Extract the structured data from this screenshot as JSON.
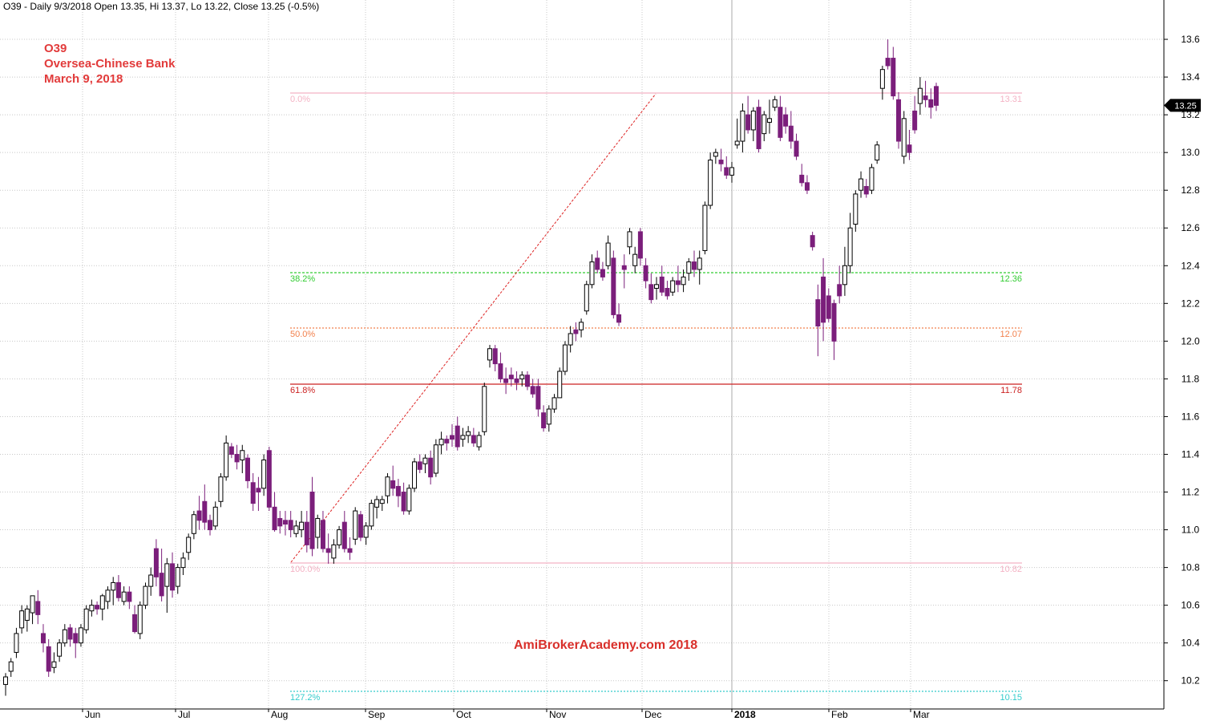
{
  "header": {
    "text": "O39 - Daily 9/3/2018 Open 13.35, Hi 13.37, Lo 13.22, Close 13.25 (-0.5%)"
  },
  "title": {
    "ticker": "O39",
    "name": "Oversea-Chinese Bank",
    "date": "March 9, 2018"
  },
  "watermark": "AmiBrokerAcademy.com  2018",
  "colors": {
    "bear": "#7b1e7b",
    "bull": "#ffffff",
    "wick": "#000000",
    "grid": "#c8c8c8",
    "fib_0": "#f4b2c4",
    "fib_382": "#33cc33",
    "fib_50": "#f2814d",
    "fib_618": "#cc2222",
    "fib_100": "#f4b2c4",
    "fib_1272": "#33cccc",
    "trend": "#dd2222"
  },
  "chart_data": {
    "type": "candlestick",
    "y_range": [
      10.05,
      13.8
    ],
    "y_ticks": [
      10.2,
      10.4,
      10.6,
      10.8,
      11.0,
      11.2,
      11.4,
      11.6,
      11.8,
      12.0,
      12.2,
      12.4,
      12.6,
      12.8,
      13.0,
      13.2,
      13.4,
      13.6
    ],
    "x_months": [
      "Jun",
      "Jul",
      "Aug",
      "Sep",
      "Oct",
      "Nov",
      "Dec",
      "2018",
      "Feb",
      "Mar"
    ],
    "last_close": "13.25",
    "fib_levels": [
      {
        "pct": "0.0%",
        "value": "13.31",
        "color_key": "fib_0",
        "style": "solid"
      },
      {
        "pct": "38.2%",
        "value": "12.36",
        "color_key": "fib_382",
        "style": "dashed"
      },
      {
        "pct": "50.0%",
        "value": "12.07",
        "color_key": "fib_50",
        "style": "dotted"
      },
      {
        "pct": "61.8%",
        "value": "11.78",
        "color_key": "fib_618",
        "style": "solid"
      },
      {
        "pct": "100.0%",
        "value": "10.82",
        "color_key": "fib_100",
        "style": "solid"
      },
      {
        "pct": "127.2%",
        "value": "10.15",
        "color_key": "fib_1272",
        "style": "dotted"
      }
    ],
    "trendline": {
      "from": {
        "month_index": 2.1,
        "price": 10.82
      },
      "to": {
        "month_index": 6.1,
        "price": 13.31
      }
    },
    "ohlc": [
      [
        10.18,
        10.24,
        10.12,
        10.22
      ],
      [
        10.25,
        10.32,
        10.22,
        10.3
      ],
      [
        10.35,
        10.48,
        10.32,
        10.45
      ],
      [
        10.48,
        10.6,
        10.45,
        10.57
      ],
      [
        10.52,
        10.6,
        10.46,
        10.58
      ],
      [
        10.56,
        10.65,
        10.5,
        10.65
      ],
      [
        10.62,
        10.68,
        10.5,
        10.55
      ],
      [
        10.45,
        10.5,
        10.35,
        10.4
      ],
      [
        10.38,
        10.42,
        10.22,
        10.25
      ],
      [
        10.27,
        10.35,
        10.24,
        10.3
      ],
      [
        10.33,
        10.42,
        10.3,
        10.4
      ],
      [
        10.4,
        10.5,
        10.38,
        10.47
      ],
      [
        10.48,
        10.5,
        10.38,
        10.42
      ],
      [
        10.45,
        10.48,
        10.32,
        10.4
      ],
      [
        10.4,
        10.5,
        10.38,
        10.48
      ],
      [
        10.47,
        10.6,
        10.45,
        10.58
      ],
      [
        10.57,
        10.63,
        10.54,
        10.6
      ],
      [
        10.6,
        10.62,
        10.55,
        10.58
      ],
      [
        10.58,
        10.66,
        10.52,
        10.65
      ],
      [
        10.62,
        10.7,
        10.58,
        10.68
      ],
      [
        10.68,
        10.75,
        10.6,
        10.72
      ],
      [
        10.72,
        10.76,
        10.62,
        10.64
      ],
      [
        10.62,
        10.7,
        10.6,
        10.67
      ],
      [
        10.67,
        10.7,
        10.58,
        10.62
      ],
      [
        10.55,
        10.6,
        10.45,
        10.46
      ],
      [
        10.45,
        10.62,
        10.42,
        10.6
      ],
      [
        10.6,
        10.72,
        10.58,
        10.7
      ],
      [
        10.7,
        10.8,
        10.65,
        10.76
      ],
      [
        10.9,
        10.95,
        10.7,
        10.75
      ],
      [
        10.77,
        10.9,
        10.62,
        10.65
      ],
      [
        10.7,
        10.85,
        10.56,
        10.82
      ],
      [
        10.82,
        10.88,
        10.64,
        10.68
      ],
      [
        10.7,
        10.82,
        10.66,
        10.8
      ],
      [
        10.8,
        10.88,
        10.76,
        10.85
      ],
      [
        10.88,
        10.98,
        10.84,
        10.96
      ],
      [
        10.98,
        11.1,
        10.95,
        11.08
      ],
      [
        11.1,
        11.18,
        11.0,
        11.05
      ],
      [
        11.15,
        11.24,
        11.0,
        11.04
      ],
      [
        11.05,
        11.08,
        10.97,
        11.0
      ],
      [
        11.02,
        11.15,
        11.0,
        11.12
      ],
      [
        11.15,
        11.3,
        11.12,
        11.28
      ],
      [
        11.28,
        11.5,
        11.26,
        11.46
      ],
      [
        11.44,
        11.46,
        11.38,
        11.4
      ],
      [
        11.4,
        11.45,
        11.32,
        11.36
      ],
      [
        11.37,
        11.45,
        11.3,
        11.42
      ],
      [
        11.38,
        11.4,
        11.22,
        11.26
      ],
      [
        11.25,
        11.3,
        11.1,
        11.14
      ],
      [
        11.22,
        11.28,
        11.1,
        11.2
      ],
      [
        11.22,
        11.4,
        11.18,
        11.37
      ],
      [
        11.42,
        11.44,
        11.1,
        11.12
      ],
      [
        11.12,
        11.2,
        10.99,
        11.0
      ],
      [
        11.06,
        11.1,
        10.98,
        11.02
      ],
      [
        11.05,
        11.1,
        10.97,
        11.03
      ],
      [
        11.05,
        11.1,
        10.96,
        11.0
      ],
      [
        10.98,
        11.05,
        10.96,
        11.02
      ],
      [
        11.0,
        11.1,
        10.96,
        11.04
      ],
      [
        11.04,
        11.1,
        10.88,
        10.92
      ],
      [
        11.2,
        11.28,
        10.86,
        10.9
      ],
      [
        10.96,
        11.08,
        10.9,
        11.06
      ],
      [
        11.05,
        11.1,
        10.88,
        10.9
      ],
      [
        10.9,
        10.98,
        10.82,
        10.88
      ],
      [
        10.85,
        10.95,
        10.82,
        10.92
      ],
      [
        10.92,
        11.02,
        10.9,
        11.0
      ],
      [
        11.04,
        11.1,
        10.88,
        10.9
      ],
      [
        10.9,
        10.96,
        10.84,
        10.88
      ],
      [
        10.95,
        11.12,
        10.92,
        11.1
      ],
      [
        11.08,
        11.1,
        10.94,
        10.96
      ],
      [
        10.96,
        11.04,
        10.92,
        11.02
      ],
      [
        11.02,
        11.16,
        11.0,
        11.14
      ],
      [
        11.12,
        11.18,
        11.06,
        11.16
      ],
      [
        11.14,
        11.18,
        11.1,
        11.16
      ],
      [
        11.18,
        11.3,
        11.14,
        11.28
      ],
      [
        11.26,
        11.34,
        11.18,
        11.22
      ],
      [
        11.23,
        11.27,
        11.12,
        11.18
      ],
      [
        11.2,
        11.25,
        11.08,
        11.1
      ],
      [
        11.1,
        11.24,
        11.08,
        11.22
      ],
      [
        11.22,
        11.38,
        11.2,
        11.36
      ],
      [
        11.36,
        11.4,
        11.3,
        11.32
      ],
      [
        11.35,
        11.4,
        11.3,
        11.38
      ],
      [
        11.38,
        11.42,
        11.24,
        11.28
      ],
      [
        11.3,
        11.48,
        11.28,
        11.45
      ],
      [
        11.45,
        11.52,
        11.4,
        11.48
      ],
      [
        11.48,
        11.5,
        11.42,
        11.46
      ],
      [
        11.5,
        11.56,
        11.44,
        11.48
      ],
      [
        11.55,
        11.6,
        11.42,
        11.44
      ],
      [
        11.48,
        11.54,
        11.44,
        11.5
      ],
      [
        11.5,
        11.55,
        11.46,
        11.52
      ],
      [
        11.5,
        11.54,
        11.44,
        11.46
      ],
      [
        11.44,
        11.52,
        11.42,
        11.5
      ],
      [
        11.52,
        11.78,
        11.5,
        11.76
      ],
      [
        11.9,
        11.98,
        11.86,
        11.96
      ],
      [
        11.96,
        11.98,
        11.84,
        11.88
      ],
      [
        11.88,
        11.94,
        11.78,
        11.8
      ],
      [
        11.8,
        11.86,
        11.72,
        11.78
      ],
      [
        11.82,
        11.86,
        11.76,
        11.8
      ],
      [
        11.8,
        11.84,
        11.74,
        11.78
      ],
      [
        11.8,
        11.84,
        11.76,
        11.82
      ],
      [
        11.82,
        11.84,
        11.74,
        11.76
      ],
      [
        11.76,
        11.8,
        11.7,
        11.72
      ],
      [
        11.76,
        11.8,
        11.6,
        11.64
      ],
      [
        11.62,
        11.66,
        11.52,
        11.54
      ],
      [
        11.56,
        11.66,
        11.52,
        11.64
      ],
      [
        11.64,
        11.72,
        11.62,
        11.7
      ],
      [
        11.7,
        11.86,
        11.7,
        11.84
      ],
      [
        11.84,
        12.0,
        11.82,
        11.98
      ],
      [
        11.98,
        12.08,
        11.94,
        12.04
      ],
      [
        12.06,
        12.1,
        12.0,
        12.04
      ],
      [
        12.06,
        12.12,
        12.02,
        12.1
      ],
      [
        12.16,
        12.32,
        12.14,
        12.3
      ],
      [
        12.3,
        12.46,
        12.28,
        12.42
      ],
      [
        12.44,
        12.48,
        12.36,
        12.38
      ],
      [
        12.38,
        12.42,
        12.32,
        12.34
      ],
      [
        12.4,
        12.56,
        12.38,
        12.52
      ],
      [
        12.44,
        12.48,
        12.12,
        12.14
      ],
      [
        12.14,
        12.2,
        12.08,
        12.1
      ],
      [
        12.4,
        12.46,
        12.28,
        12.38
      ],
      [
        12.5,
        12.6,
        12.46,
        12.58
      ],
      [
        12.4,
        12.5,
        12.36,
        12.46
      ],
      [
        12.58,
        12.6,
        12.4,
        12.44
      ],
      [
        12.4,
        12.44,
        12.28,
        12.32
      ],
      [
        12.3,
        12.36,
        12.2,
        12.22
      ],
      [
        12.28,
        12.34,
        12.22,
        12.3
      ],
      [
        12.34,
        12.4,
        12.24,
        12.26
      ],
      [
        12.28,
        12.32,
        12.22,
        12.24
      ],
      [
        12.26,
        12.34,
        12.24,
        12.32
      ],
      [
        12.32,
        12.4,
        12.26,
        12.3
      ],
      [
        12.3,
        12.38,
        12.26,
        12.34
      ],
      [
        12.36,
        12.44,
        12.32,
        12.42
      ],
      [
        12.42,
        12.48,
        12.34,
        12.38
      ],
      [
        12.38,
        12.48,
        12.3,
        12.44
      ],
      [
        12.48,
        12.74,
        12.46,
        12.72
      ],
      [
        12.72,
        13.0,
        12.7,
        12.96
      ],
      [
        12.98,
        13.02,
        12.94,
        13.0
      ],
      [
        12.96,
        13.02,
        12.9,
        12.94
      ],
      [
        12.92,
        12.98,
        12.86,
        12.88
      ],
      [
        12.88,
        12.95,
        12.84,
        12.92
      ],
      [
        13.04,
        13.18,
        13.02,
        13.06
      ],
      [
        13.06,
        13.26,
        13.0,
        13.22
      ],
      [
        13.2,
        13.3,
        13.1,
        13.12
      ],
      [
        13.12,
        13.24,
        13.06,
        13.22
      ],
      [
        13.24,
        13.28,
        13.0,
        13.02
      ],
      [
        13.1,
        13.22,
        13.06,
        13.2
      ],
      [
        13.16,
        13.28,
        13.1,
        13.18
      ],
      [
        13.24,
        13.3,
        13.22,
        13.28
      ],
      [
        13.24,
        13.3,
        13.06,
        13.08
      ],
      [
        13.2,
        13.24,
        13.1,
        13.14
      ],
      [
        13.14,
        13.22,
        13.02,
        13.06
      ],
      [
        13.06,
        13.1,
        12.96,
        12.98
      ],
      [
        12.88,
        12.94,
        12.82,
        12.84
      ],
      [
        12.84,
        12.88,
        12.78,
        12.8
      ],
      [
        12.56,
        12.58,
        12.48,
        12.5
      ],
      [
        12.22,
        12.3,
        11.92,
        12.08
      ],
      [
        12.34,
        12.44,
        12.0,
        12.1
      ],
      [
        12.24,
        12.28,
        12.1,
        12.12
      ],
      [
        12.2,
        12.22,
        11.9,
        12.0
      ],
      [
        12.3,
        12.4,
        12.2,
        12.24
      ],
      [
        12.3,
        12.5,
        12.24,
        12.4
      ],
      [
        12.4,
        12.68,
        12.36,
        12.6
      ],
      [
        12.62,
        12.8,
        12.58,
        12.78
      ],
      [
        12.8,
        12.9,
        12.76,
        12.86
      ],
      [
        12.82,
        12.86,
        12.76,
        12.78
      ],
      [
        12.8,
        12.94,
        12.78,
        12.92
      ],
      [
        12.96,
        13.06,
        12.94,
        13.04
      ],
      [
        13.34,
        13.46,
        13.28,
        13.44
      ],
      [
        13.5,
        13.6,
        13.44,
        13.46
      ],
      [
        13.5,
        13.56,
        13.28,
        13.3
      ],
      [
        13.28,
        13.32,
        13.02,
        13.06
      ],
      [
        12.98,
        13.22,
        12.94,
        13.18
      ],
      [
        13.04,
        13.12,
        12.96,
        13.0
      ],
      [
        13.22,
        13.3,
        13.1,
        13.12
      ],
      [
        13.26,
        13.4,
        13.2,
        13.34
      ],
      [
        13.3,
        13.38,
        13.24,
        13.28
      ],
      [
        13.28,
        13.34,
        13.18,
        13.24
      ],
      [
        13.35,
        13.37,
        13.22,
        13.25
      ]
    ]
  }
}
